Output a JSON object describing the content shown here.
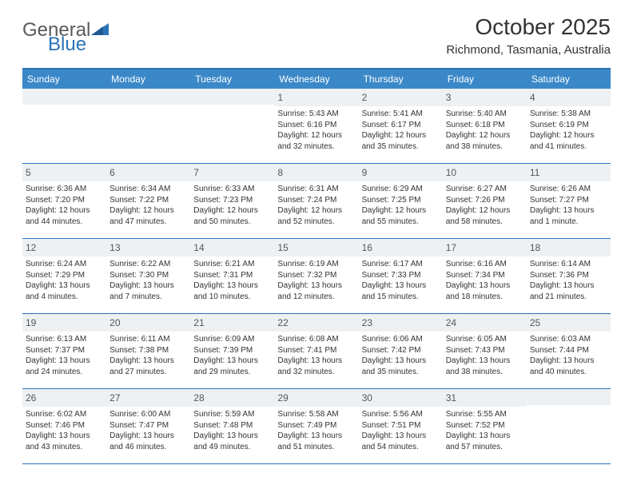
{
  "brand": {
    "part1": "General",
    "part2": "Blue"
  },
  "title": "October 2025",
  "location": "Richmond, Tasmania, Australia",
  "colors": {
    "header_bg": "#3b88c8",
    "accent": "#2b73b8",
    "daynum_bg": "#eef1f3",
    "text": "#333333",
    "logo_gray": "#5a5a5a"
  },
  "dayHeaders": [
    "Sunday",
    "Monday",
    "Tuesday",
    "Wednesday",
    "Thursday",
    "Friday",
    "Saturday"
  ],
  "leadingBlanks": 3,
  "days": [
    {
      "n": 1,
      "sunrise": "5:43 AM",
      "sunset": "6:16 PM",
      "daylight": "12 hours and 32 minutes."
    },
    {
      "n": 2,
      "sunrise": "5:41 AM",
      "sunset": "6:17 PM",
      "daylight": "12 hours and 35 minutes."
    },
    {
      "n": 3,
      "sunrise": "5:40 AM",
      "sunset": "6:18 PM",
      "daylight": "12 hours and 38 minutes."
    },
    {
      "n": 4,
      "sunrise": "5:38 AM",
      "sunset": "6:19 PM",
      "daylight": "12 hours and 41 minutes."
    },
    {
      "n": 5,
      "sunrise": "6:36 AM",
      "sunset": "7:20 PM",
      "daylight": "12 hours and 44 minutes."
    },
    {
      "n": 6,
      "sunrise": "6:34 AM",
      "sunset": "7:22 PM",
      "daylight": "12 hours and 47 minutes."
    },
    {
      "n": 7,
      "sunrise": "6:33 AM",
      "sunset": "7:23 PM",
      "daylight": "12 hours and 50 minutes."
    },
    {
      "n": 8,
      "sunrise": "6:31 AM",
      "sunset": "7:24 PM",
      "daylight": "12 hours and 52 minutes."
    },
    {
      "n": 9,
      "sunrise": "6:29 AM",
      "sunset": "7:25 PM",
      "daylight": "12 hours and 55 minutes."
    },
    {
      "n": 10,
      "sunrise": "6:27 AM",
      "sunset": "7:26 PM",
      "daylight": "12 hours and 58 minutes."
    },
    {
      "n": 11,
      "sunrise": "6:26 AM",
      "sunset": "7:27 PM",
      "daylight": "13 hours and 1 minute."
    },
    {
      "n": 12,
      "sunrise": "6:24 AM",
      "sunset": "7:29 PM",
      "daylight": "13 hours and 4 minutes."
    },
    {
      "n": 13,
      "sunrise": "6:22 AM",
      "sunset": "7:30 PM",
      "daylight": "13 hours and 7 minutes."
    },
    {
      "n": 14,
      "sunrise": "6:21 AM",
      "sunset": "7:31 PM",
      "daylight": "13 hours and 10 minutes."
    },
    {
      "n": 15,
      "sunrise": "6:19 AM",
      "sunset": "7:32 PM",
      "daylight": "13 hours and 12 minutes."
    },
    {
      "n": 16,
      "sunrise": "6:17 AM",
      "sunset": "7:33 PM",
      "daylight": "13 hours and 15 minutes."
    },
    {
      "n": 17,
      "sunrise": "6:16 AM",
      "sunset": "7:34 PM",
      "daylight": "13 hours and 18 minutes."
    },
    {
      "n": 18,
      "sunrise": "6:14 AM",
      "sunset": "7:36 PM",
      "daylight": "13 hours and 21 minutes."
    },
    {
      "n": 19,
      "sunrise": "6:13 AM",
      "sunset": "7:37 PM",
      "daylight": "13 hours and 24 minutes."
    },
    {
      "n": 20,
      "sunrise": "6:11 AM",
      "sunset": "7:38 PM",
      "daylight": "13 hours and 27 minutes."
    },
    {
      "n": 21,
      "sunrise": "6:09 AM",
      "sunset": "7:39 PM",
      "daylight": "13 hours and 29 minutes."
    },
    {
      "n": 22,
      "sunrise": "6:08 AM",
      "sunset": "7:41 PM",
      "daylight": "13 hours and 32 minutes."
    },
    {
      "n": 23,
      "sunrise": "6:06 AM",
      "sunset": "7:42 PM",
      "daylight": "13 hours and 35 minutes."
    },
    {
      "n": 24,
      "sunrise": "6:05 AM",
      "sunset": "7:43 PM",
      "daylight": "13 hours and 38 minutes."
    },
    {
      "n": 25,
      "sunrise": "6:03 AM",
      "sunset": "7:44 PM",
      "daylight": "13 hours and 40 minutes."
    },
    {
      "n": 26,
      "sunrise": "6:02 AM",
      "sunset": "7:46 PM",
      "daylight": "13 hours and 43 minutes."
    },
    {
      "n": 27,
      "sunrise": "6:00 AM",
      "sunset": "7:47 PM",
      "daylight": "13 hours and 46 minutes."
    },
    {
      "n": 28,
      "sunrise": "5:59 AM",
      "sunset": "7:48 PM",
      "daylight": "13 hours and 49 minutes."
    },
    {
      "n": 29,
      "sunrise": "5:58 AM",
      "sunset": "7:49 PM",
      "daylight": "13 hours and 51 minutes."
    },
    {
      "n": 30,
      "sunrise": "5:56 AM",
      "sunset": "7:51 PM",
      "daylight": "13 hours and 54 minutes."
    },
    {
      "n": 31,
      "sunrise": "5:55 AM",
      "sunset": "7:52 PM",
      "daylight": "13 hours and 57 minutes."
    }
  ],
  "labels": {
    "sunrise": "Sunrise:",
    "sunset": "Sunset:",
    "daylight": "Daylight:"
  }
}
